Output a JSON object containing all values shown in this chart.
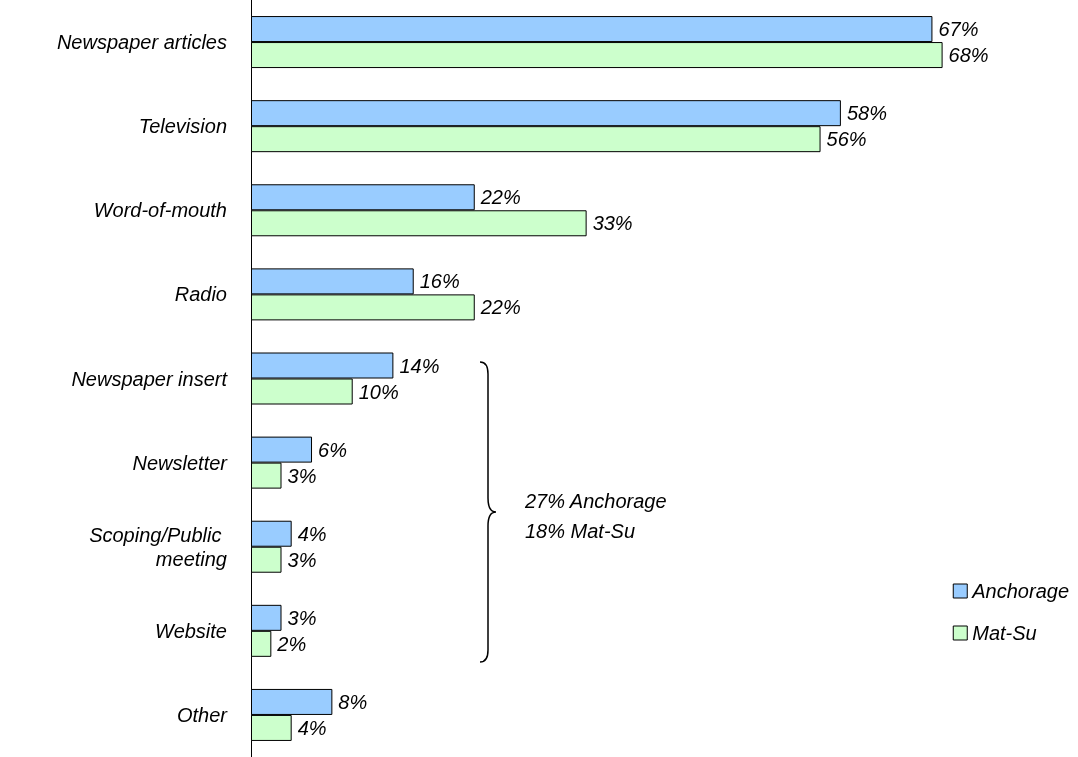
{
  "chart_data": {
    "type": "bar",
    "orientation": "horizontal",
    "categories": [
      "Newspaper articles",
      "Television",
      "Word-of-mouth",
      "Radio",
      "Newspaper insert",
      "Newsletter",
      "Scoping/Public meeting",
      "Website",
      "Other"
    ],
    "series": [
      {
        "name": "Anchorage",
        "color": "#99ccff",
        "values": [
          67,
          58,
          22,
          16,
          14,
          6,
          4,
          3,
          8
        ],
        "value_labels": [
          "67%",
          "58%",
          "22%",
          "16%",
          "14%",
          "6%",
          "4%",
          "3%",
          "8%"
        ]
      },
      {
        "name": "Mat-Su",
        "color": "#ccffcc",
        "values": [
          68,
          56,
          33,
          22,
          10,
          3,
          3,
          2,
          4
        ],
        "value_labels": [
          "68%",
          "56%",
          "33%",
          "22%",
          "10%",
          "3%",
          "3%",
          "2%",
          "4%"
        ]
      }
    ],
    "annotations": [
      "27% Anchorage\n18% Mat-Su"
    ],
    "legend": "bottom right",
    "grid": false,
    "tick_labels": "y"
  }
}
